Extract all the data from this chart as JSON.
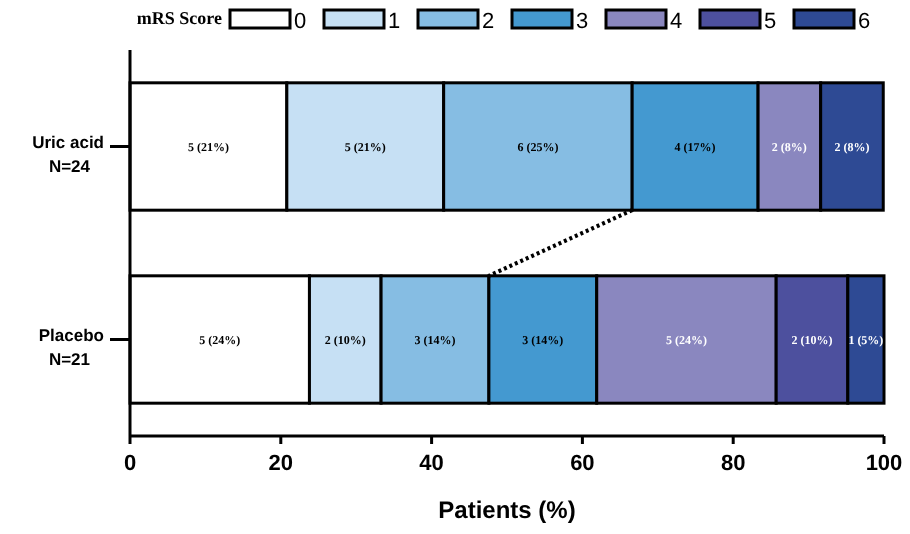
{
  "chart_data": {
    "type": "bar",
    "orientation": "horizontal",
    "stacked": true,
    "xlabel": "Patients (%)",
    "legend_title": "mRS Score",
    "legend": "top",
    "categories": [
      "Uric acid\nN=24",
      "Placebo\nN=21"
    ],
    "xlim": [
      0,
      100
    ],
    "xticks": [
      0,
      20,
      40,
      60,
      80,
      100
    ],
    "series": [
      {
        "name": "0",
        "color": "#ffffff",
        "values": [
          20.8,
          23.8
        ],
        "value_labels": [
          "5 (21%)",
          "5 (24%)"
        ]
      },
      {
        "name": "1",
        "color": "#c6e0f4",
        "values": [
          20.8,
          9.5
        ],
        "value_labels": [
          "5 (21%)",
          "2 (10%)"
        ]
      },
      {
        "name": "2",
        "color": "#86bde3",
        "values": [
          25,
          14.3
        ],
        "value_labels": [
          "6 (25%)",
          "3 (14%)"
        ]
      },
      {
        "name": "3",
        "color": "#4499d0",
        "values": [
          16.7,
          14.3
        ],
        "value_labels": [
          "4 (17%)",
          "3 (14%)"
        ]
      },
      {
        "name": "4",
        "color": "#8a87bf",
        "values": [
          8.3,
          23.8
        ],
        "value_labels": [
          "2 (8%)",
          "5 (24%)"
        ]
      },
      {
        "name": "5",
        "color": "#4d509e",
        "values": [
          null,
          9.5
        ],
        "value_labels": [
          null,
          "2 (10%)"
        ]
      },
      {
        "name": "6",
        "color": "#2e4a94",
        "values": [
          8.3,
          4.8
        ],
        "value_labels": [
          "2 (8%)",
          "1 (5%)"
        ]
      }
    ]
  }
}
